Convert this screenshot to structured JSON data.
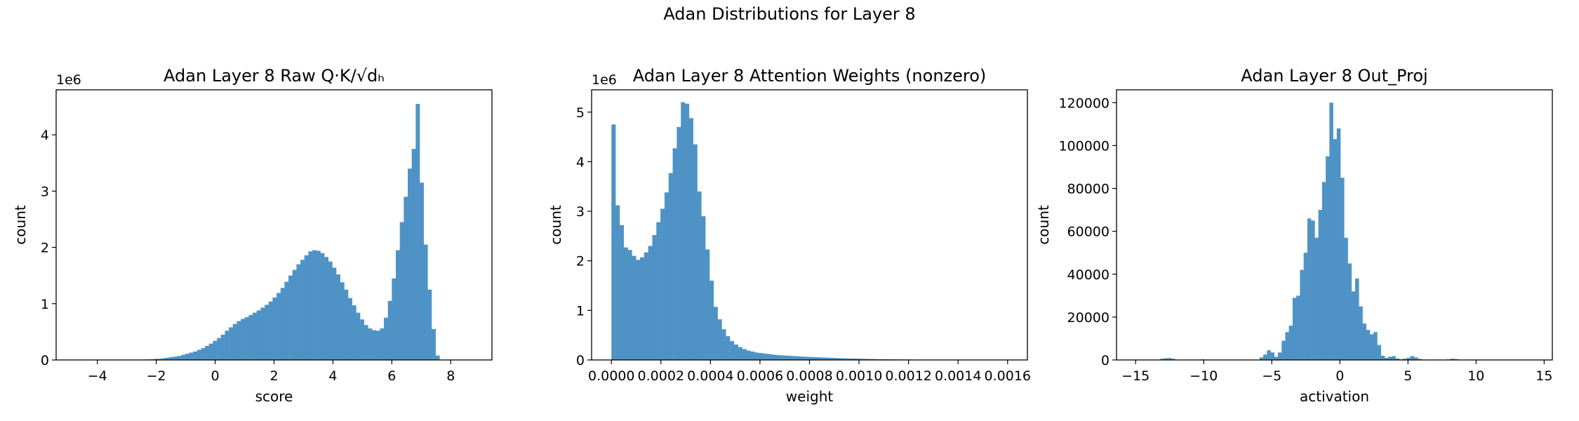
{
  "figure": {
    "title": "Adan Distributions for Layer 8"
  },
  "colors": {
    "bar": "#4f93c6",
    "axis": "#000000",
    "background": "#ffffff"
  },
  "chart_data": [
    {
      "type": "bar",
      "title": "Adan Layer 8 Raw Q·K/√dₕ",
      "xlabel": "score",
      "ylabel": "count",
      "offset_label": "1e6",
      "xlim": [
        -5.4,
        9.4
      ],
      "ylim": [
        0,
        4.8
      ],
      "xticks": [
        -4,
        -2,
        0,
        2,
        4,
        6,
        8
      ],
      "yticks": [
        0,
        1,
        2,
        3,
        4
      ],
      "xtick_labels": [
        "−4",
        "−2",
        "0",
        "2",
        "4",
        "6",
        "8"
      ],
      "ytick_labels": [
        "0",
        "1",
        "2",
        "3",
        "4"
      ],
      "bins": {
        "start": -4.8,
        "width": 0.135
      },
      "values": [
        0.0,
        0.0,
        0.0,
        0.0,
        0.0,
        0.0,
        0.0,
        0.0,
        0.0,
        0.0,
        0.0,
        0.0,
        0.0,
        0.0,
        0.0,
        0.0,
        0.0,
        0.0,
        0.01,
        0.01,
        0.02,
        0.02,
        0.03,
        0.04,
        0.05,
        0.06,
        0.07,
        0.09,
        0.11,
        0.13,
        0.15,
        0.18,
        0.21,
        0.25,
        0.29,
        0.34,
        0.39,
        0.45,
        0.52,
        0.58,
        0.64,
        0.69,
        0.73,
        0.76,
        0.8,
        0.84,
        0.88,
        0.93,
        0.98,
        1.04,
        1.11,
        1.19,
        1.28,
        1.39,
        1.5,
        1.6,
        1.7,
        1.78,
        1.86,
        1.93,
        1.95,
        1.94,
        1.9,
        1.83,
        1.75,
        1.64,
        1.52,
        1.38,
        1.25,
        1.1,
        0.97,
        0.84,
        0.72,
        0.62,
        0.56,
        0.53,
        0.52,
        0.56,
        0.75,
        1.05,
        1.45,
        1.95,
        2.45,
        2.9,
        3.4,
        3.75,
        4.55,
        3.15,
        2.05,
        1.25,
        0.55,
        0.08
      ]
    },
    {
      "type": "bar",
      "title": "Adan Layer 8 Attention Weights (nonzero)",
      "xlabel": "weight",
      "ylabel": "count",
      "offset_label": "1e6",
      "xlim": [
        -8e-05,
        0.00168
      ],
      "ylim": [
        0,
        5.45
      ],
      "xticks": [
        0,
        0.0002,
        0.0004,
        0.0006,
        0.0008,
        0.001,
        0.0012,
        0.0014,
        0.0016
      ],
      "yticks": [
        0,
        1,
        2,
        3,
        4,
        5
      ],
      "xtick_labels": [
        "0.0000",
        "0.0002",
        "0.0004",
        "0.0006",
        "0.0008",
        "0.0010",
        "0.0012",
        "0.0014",
        "0.0016"
      ],
      "ytick_labels": [
        "0",
        "1",
        "2",
        "3",
        "4",
        "5"
      ],
      "bins": {
        "start": 0.0,
        "width": 1.65e-05
      },
      "values": [
        4.75,
        3.12,
        2.72,
        2.27,
        2.22,
        2.1,
        2.02,
        2.07,
        2.17,
        2.3,
        2.52,
        2.78,
        3.05,
        3.38,
        3.77,
        4.27,
        4.7,
        5.2,
        5.17,
        4.88,
        4.35,
        3.4,
        2.9,
        2.23,
        1.6,
        1.07,
        0.82,
        0.62,
        0.48,
        0.38,
        0.31,
        0.26,
        0.22,
        0.19,
        0.17,
        0.15,
        0.14,
        0.13,
        0.12,
        0.11,
        0.1,
        0.095,
        0.09,
        0.085,
        0.08,
        0.075,
        0.07,
        0.066,
        0.062,
        0.058,
        0.054,
        0.05,
        0.047,
        0.044,
        0.041,
        0.038,
        0.035,
        0.032,
        0.03,
        0.028,
        0.026,
        0.024,
        0.022,
        0.02,
        0.018,
        0.016,
        0.015,
        0.014,
        0.013,
        0.012,
        0.011,
        0.01,
        0.009,
        0.008,
        0.007,
        0.006,
        0.005,
        0.005,
        0.004,
        0.004,
        0.003,
        0.003,
        0.002,
        0.002,
        0.002,
        0.001,
        0.001,
        0.001,
        0.001,
        0.001,
        0.001,
        0.001,
        0.001,
        0.001,
        0.001,
        0.001
      ]
    },
    {
      "type": "bar",
      "title": "Adan Layer 8 Out_Proj",
      "xlabel": "activation",
      "ylabel": "count",
      "offset_label": "",
      "xlim": [
        -16.4,
        15.6
      ],
      "ylim": [
        0,
        126000
      ],
      "xticks": [
        -15,
        -10,
        -5,
        0,
        5,
        10,
        15
      ],
      "yticks": [
        0,
        20000,
        40000,
        60000,
        80000,
        100000,
        120000
      ],
      "xtick_labels": [
        "−15",
        "−10",
        "−5",
        "0",
        "5",
        "10",
        "15"
      ],
      "ytick_labels": [
        "0",
        "20000",
        "40000",
        "60000",
        "80000",
        "100000",
        "120000"
      ],
      "bins": {
        "start": -14.0,
        "width": 0.27
      },
      "values": [
        0,
        0,
        0,
        600,
        800,
        900,
        600,
        0,
        0,
        0,
        0,
        0,
        0,
        0,
        300,
        0,
        0,
        0,
        0,
        0,
        0,
        0,
        0,
        0,
        0,
        0,
        0,
        0,
        0,
        0,
        1200,
        2500,
        4500,
        3500,
        1500,
        3500,
        9000,
        13000,
        16000,
        29000,
        30000,
        42000,
        50000,
        66000,
        65000,
        57000,
        70000,
        83000,
        95000,
        120000,
        103000,
        108000,
        85000,
        57000,
        45000,
        32000,
        38000,
        25000,
        17000,
        14000,
        12000,
        13000,
        7000,
        2000,
        1000,
        1500,
        1800,
        700,
        300,
        600,
        1000,
        1800,
        1200,
        500,
        200,
        0,
        0,
        0,
        0,
        0,
        0,
        300,
        600,
        400,
        0,
        0,
        0,
        0,
        0,
        0,
        0,
        0,
        0,
        0,
        0,
        0
      ]
    }
  ]
}
